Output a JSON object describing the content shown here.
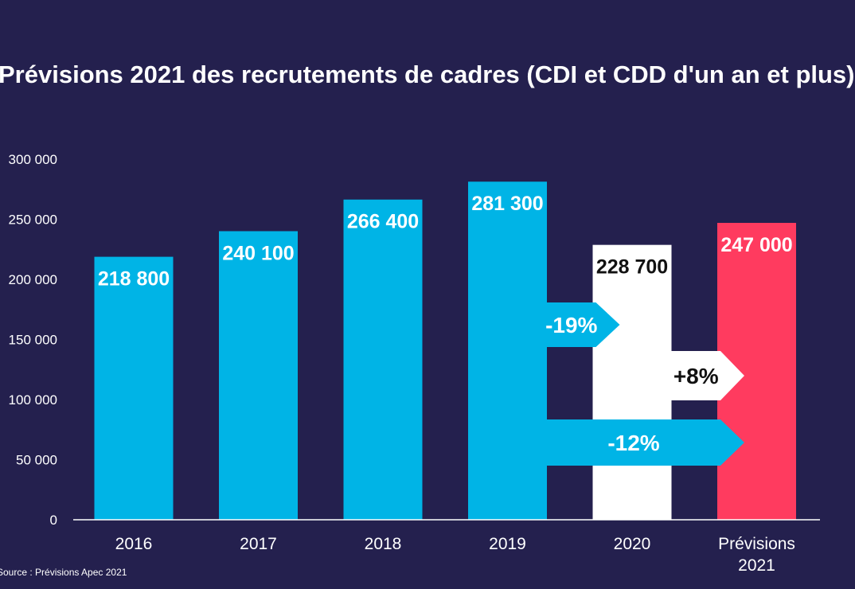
{
  "chart_data": {
    "type": "bar",
    "title": "Prévisions 2021 des recrutements de cadres (CDI et CDD d'un an et plus)",
    "xlabel": "",
    "ylabel": "",
    "ylim": [
      0,
      300000
    ],
    "yticks": [
      {
        "value": 0,
        "label": "0"
      },
      {
        "value": 50000,
        "label": "50 000"
      },
      {
        "value": 100000,
        "label": "100 000"
      },
      {
        "value": 150000,
        "label": "150 000"
      },
      {
        "value": 200000,
        "label": "200 000"
      },
      {
        "value": 250000,
        "label": "250 000"
      },
      {
        "value": 300000,
        "label": "300 000"
      }
    ],
    "bars": [
      {
        "category": "2016",
        "value": 218800,
        "label": "218 800",
        "color": "#00b4e6",
        "label_color": "#ffffff"
      },
      {
        "category": "2017",
        "value": 240100,
        "label": "240 100",
        "color": "#00b4e6",
        "label_color": "#ffffff"
      },
      {
        "category": "2018",
        "value": 266400,
        "label": "266 400",
        "color": "#00b4e6",
        "label_color": "#ffffff"
      },
      {
        "category": "2019",
        "value": 281300,
        "label": "281 300",
        "color": "#00b4e6",
        "label_color": "#ffffff"
      },
      {
        "category": "2020",
        "value": 228700,
        "label": "228 700",
        "color": "#ffffff",
        "label_color": "#111111"
      },
      {
        "category": "Prévisions\n2021",
        "value": 247000,
        "label": "247 000",
        "color": "#ff3b5f",
        "label_color": "#ffffff"
      }
    ],
    "annotations": [
      {
        "text": "-19%",
        "from": "2019",
        "to": "2020",
        "color": "#00b4e6",
        "text_color": "#ffffff"
      },
      {
        "text": "+8%",
        "from": "2020",
        "to": "Prévisions\n2021",
        "color": "#ffffff",
        "text_color": "#111111"
      },
      {
        "text": "-12%",
        "from": "2019",
        "to": "Prévisions\n2021",
        "color": "#00b4e6",
        "text_color": "#ffffff"
      }
    ]
  },
  "source": "Source : Prévisions Apec 2021"
}
